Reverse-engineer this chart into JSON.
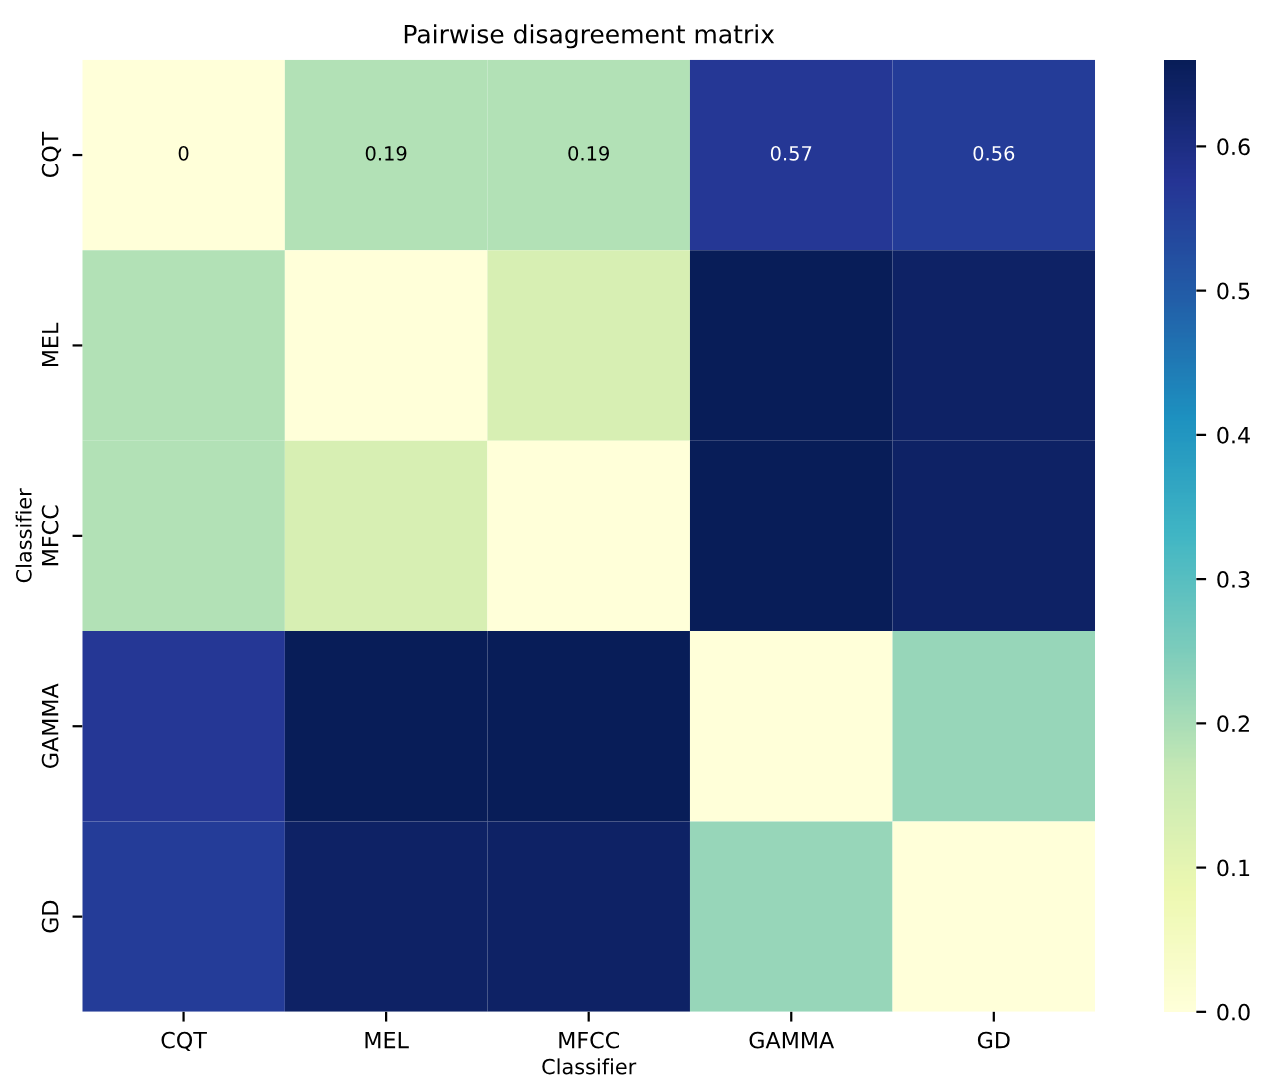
{
  "chart_data": {
    "type": "heatmap",
    "title": "Pairwise disagreement matrix",
    "xlabel": "Classifier",
    "ylabel": "Classifier",
    "categories": [
      "CQT",
      "MEL",
      "MFCC",
      "GAMMA",
      "GD"
    ],
    "y_categories": [
      "CQT",
      "MEL",
      "MFCC",
      "GAMMA",
      "GD"
    ],
    "cells": [
      [
        0,
        0.19,
        0.19,
        0.57,
        0.56
      ],
      [
        0.19,
        0,
        0.13,
        0.66,
        0.64
      ],
      [
        0.19,
        0.13,
        0,
        0.66,
        0.64
      ],
      [
        0.57,
        0.66,
        0.66,
        0,
        0.22
      ],
      [
        0.56,
        0.64,
        0.64,
        0.22,
        0
      ]
    ],
    "cell_labels": [
      [
        "0",
        "0.19",
        "0.19",
        "0.57",
        "0.56"
      ],
      [
        null,
        null,
        null,
        null,
        null
      ],
      [
        null,
        null,
        null,
        null,
        null
      ],
      [
        null,
        null,
        null,
        null,
        null
      ],
      [
        null,
        null,
        null,
        null,
        null
      ]
    ],
    "clim": [
      0,
      0.66
    ],
    "cticks": [
      {
        "value": 0,
        "label": "0.0"
      },
      0.1,
      0.2,
      0.3,
      0.4,
      0.5,
      0.6
    ]
  }
}
